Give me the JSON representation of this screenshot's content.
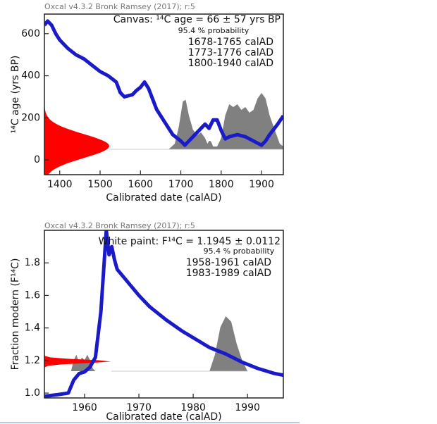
{
  "chart_data": [
    {
      "type": "line",
      "title": "Oxcal v4.3.2 Bronk Ramsey (2017); r:5",
      "annotation": [
        "Canvas: ¹⁴C age = 66 ± 57 yrs BP",
        "95.4 % probability",
        "1678-1765 calAD",
        "1773-1776 calAD",
        "1800-1940 calAD"
      ],
      "x_label": "Calibrated date (calAD)",
      "y_label": "¹⁴C age (yrs BP)",
      "xlim": [
        1362,
        1954
      ],
      "ylim": [
        -70,
        693
      ],
      "xticks": [
        1400,
        1500,
        1600,
        1700,
        1800,
        1900
      ],
      "yticks": [
        0,
        200,
        400,
        600
      ],
      "measurement": {
        "value": 66,
        "error": 57,
        "color": "#ff0000"
      },
      "curve": {
        "color": "#1a1ac8",
        "x": [
          1362,
          1370,
          1380,
          1390,
          1400,
          1420,
          1440,
          1460,
          1480,
          1500,
          1520,
          1540,
          1550,
          1560,
          1580,
          1590,
          1600,
          1610,
          1620,
          1630,
          1640,
          1660,
          1680,
          1700,
          1710,
          1720,
          1740,
          1750,
          1760,
          1770,
          1780,
          1790,
          1800,
          1810,
          1820,
          1840,
          1860,
          1880,
          1900,
          1910,
          1920,
          1940,
          1954
        ],
        "values": [
          640,
          660,
          640,
          600,
          570,
          530,
          500,
          480,
          450,
          420,
          400,
          370,
          320,
          300,
          310,
          330,
          345,
          370,
          340,
          290,
          240,
          180,
          120,
          90,
          70,
          90,
          130,
          150,
          170,
          150,
          190,
          190,
          140,
          100,
          110,
          120,
          110,
          90,
          70,
          90,
          120,
          170,
          210
        ]
      },
      "probability": {
        "color": "#808080",
        "x": [
          1670,
          1685,
          1695,
          1705,
          1712,
          1720,
          1730,
          1740,
          1750,
          1760,
          1766,
          1770,
          1773,
          1776,
          1780,
          1790,
          1800,
          1810,
          1820,
          1830,
          1840,
          1850,
          1860,
          1870,
          1880,
          1890,
          1900,
          1910,
          1920,
          1935,
          1945,
          1954
        ],
        "values": [
          0,
          0.1,
          0.4,
          0.85,
          0.88,
          0.6,
          0.35,
          0.25,
          0.3,
          0.2,
          0.1,
          0.15,
          0.15,
          0.12,
          0.05,
          0.05,
          0.2,
          0.6,
          0.8,
          0.75,
          0.8,
          0.7,
          0.75,
          0.65,
          0.7,
          0.9,
          1.0,
          0.9,
          0.6,
          0.3,
          0.1,
          0.05
        ]
      }
    },
    {
      "type": "line",
      "title": "Oxcal v4.3.2 Bronk Ramsey (2017); r:5",
      "annotation": [
        "White paint: F¹⁴C = 1.1945 ± 0.0112",
        "95.4 % probability",
        "1958-1961 calAD",
        "1983-1989 calAD"
      ],
      "x_label": "Calibrated date (calAD)",
      "y_label": "Fraction modern (F¹⁴C)",
      "xlim": [
        1952.6,
        1996.6
      ],
      "ylim": [
        0.97,
        2.0
      ],
      "xticks": [
        1960,
        1970,
        1980,
        1990
      ],
      "yticks": [
        {
          "value": 1,
          "label": "1.0"
        },
        1.2,
        1.4,
        1.6,
        1.8
      ],
      "measurement": {
        "value": 1.1945,
        "error": 0.0112,
        "color": "#ff0000"
      },
      "curve": {
        "color": "#1a1ac8",
        "x": [
          1952.6,
          1955,
          1957,
          1958,
          1959,
          1960,
          1961,
          1962,
          1963,
          1963.5,
          1964,
          1964.5,
          1965,
          1965.5,
          1966,
          1967,
          1968,
          1970,
          1972,
          1975,
          1978,
          1980,
          1983,
          1986,
          1989,
          1992,
          1995,
          1996.6
        ],
        "values": [
          0.98,
          0.99,
          1.0,
          1.08,
          1.12,
          1.13,
          1.16,
          1.22,
          1.5,
          1.75,
          2.0,
          1.85,
          1.9,
          1.82,
          1.76,
          1.72,
          1.68,
          1.6,
          1.53,
          1.45,
          1.38,
          1.34,
          1.28,
          1.24,
          1.19,
          1.15,
          1.12,
          1.11
        ]
      },
      "probability": {
        "color": "#808080",
        "x": [
          1957.5,
          1958,
          1958.5,
          1959,
          1959.5,
          1960,
          1960.5,
          1961,
          1961.5,
          1962,
          1970,
          1983,
          1984,
          1985,
          1986,
          1987,
          1988,
          1989,
          1990
        ],
        "values": [
          0,
          0.2,
          0.3,
          0.15,
          0.25,
          0.2,
          0.3,
          0.2,
          0.05,
          0,
          null,
          0,
          0.3,
          0.8,
          1.0,
          0.9,
          0.5,
          0.2,
          0
        ]
      }
    }
  ]
}
